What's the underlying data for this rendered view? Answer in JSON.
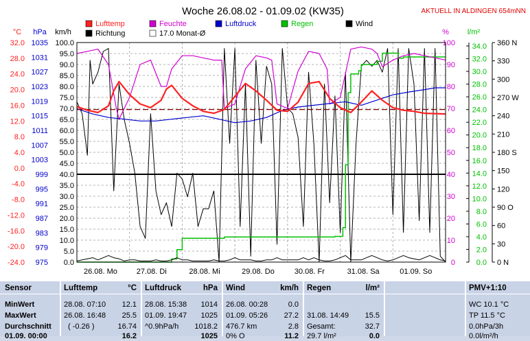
{
  "title": "Woche 26.08.02 - 01.09.02 (KW35)",
  "station_note": "AKTUELL IN ALDINGEN 654mNN",
  "colors": {
    "temp": "#ff2020",
    "hum": "#d000d0",
    "press": "#0000cc",
    "rain": "#00c000",
    "wind": "#000000",
    "avg": "#800000"
  },
  "axis_units": {
    "temp": "°C",
    "press": "hPa",
    "wind": "km/h",
    "hum": "%",
    "rain": "l/m²"
  },
  "legend": [
    {
      "label": "Lufttemp",
      "color": "#ff2020"
    },
    {
      "label": "Feuchte",
      "color": "#d000d0"
    },
    {
      "label": "Luftdruck",
      "color": "#0000cc"
    },
    {
      "label": "Regen",
      "color": "#00c000"
    },
    {
      "label": "Wind",
      "color": "#000000"
    },
    {
      "label": "Richtung",
      "color": "#000000"
    },
    {
      "label": "17.0 Monat-Ø",
      "color": "#ffffff"
    }
  ],
  "x_ticks": [
    "26.08.  Mo",
    "27.08.  Di",
    "28.08.  Mi",
    "29.08.  Do",
    "30.08.  Fr",
    "31.08.  Sa",
    "01.09.  So"
  ],
  "temp_ticks": [
    "32.0",
    "28.0",
    "24.0",
    "20.0",
    "16.0",
    "12.0",
    "8.0",
    "4.0",
    "0.0",
    "-4.0",
    "-8.0",
    "-12.0",
    "-16.0",
    "-20.0",
    "-24.0"
  ],
  "press_ticks": [
    "1035",
    "1031",
    "1027",
    "1023",
    "1019",
    "1015",
    "1011",
    "1007",
    "1003",
    "999",
    "995",
    "991",
    "987",
    "983",
    "979",
    "975"
  ],
  "wind_ticks": [
    "100.0",
    "95.0",
    "90.0",
    "85.0",
    "80.0",
    "75.0",
    "70.0",
    "65.0",
    "60.0",
    "55.0",
    "50.0",
    "45.0",
    "40.0",
    "35.0",
    "30.0",
    "25.0",
    "20.0",
    "15.0",
    "10.0",
    "5.0",
    "0.0"
  ],
  "hum_ticks": [
    "100",
    "90",
    "80",
    "70",
    "60",
    "50",
    "40",
    "30",
    "20",
    "10",
    "0"
  ],
  "rain_ticks": [
    "34.0",
    "32.0",
    "30.0",
    "28.0",
    "26.0",
    "24.0",
    "22.0",
    "20.0",
    "18.0",
    "16.0",
    "14.0",
    "12.0",
    "10.0",
    "8.0",
    "6.0",
    "4.0",
    "2.0",
    "0.0"
  ],
  "dir_ticks": [
    "360 N",
    "330",
    "300",
    "270 W",
    "240",
    "210",
    "180 S",
    "150",
    "120",
    "90 O",
    "60",
    "30",
    "0   N"
  ],
  "chart_data": {
    "type": "line",
    "title": "Woche 26.08.02 - 01.09.02 (KW35)",
    "x_unit": "days since 26.08.02 00:00",
    "xlim": [
      0,
      7
    ],
    "categories": [
      "26.08. Mo",
      "27.08. Di",
      "28.08. Mi",
      "29.08. Do",
      "30.08. Fr",
      "31.08. Sa",
      "01.09. So"
    ],
    "series": [
      {
        "name": "Lufttemp",
        "unit": "°C",
        "ylim": [
          -24,
          35
        ],
        "x": [
          0.0,
          0.2,
          0.4,
          0.6,
          0.7,
          0.8,
          1.0,
          1.2,
          1.4,
          1.6,
          1.7,
          1.8,
          2.0,
          2.2,
          2.4,
          2.6,
          2.8,
          3.0,
          3.2,
          3.4,
          3.6,
          3.8,
          4.0,
          4.2,
          4.4,
          4.6,
          4.8,
          5.0,
          5.2,
          5.4,
          5.6,
          5.8,
          6.0,
          6.2,
          6.4,
          6.6,
          6.8,
          7.0
        ],
        "values": [
          17.8,
          16.8,
          16.2,
          18.0,
          22.0,
          24.5,
          21.0,
          18.5,
          17.5,
          19.5,
          22.5,
          23.5,
          20.0,
          18.0,
          16.5,
          16.0,
          17.0,
          20.5,
          24.0,
          22.0,
          19.5,
          16.8,
          16.5,
          19.0,
          24.0,
          24.5,
          20.0,
          17.5,
          16.2,
          19.0,
          22.0,
          19.5,
          17.5,
          16.8,
          16.5,
          16.0,
          15.9,
          15.8
        ]
      },
      {
        "name": "Feuchte",
        "unit": "%",
        "ylim": [
          0,
          100
        ],
        "x": [
          0.0,
          0.2,
          0.4,
          0.6,
          0.75,
          0.8,
          1.0,
          1.2,
          1.4,
          1.6,
          1.7,
          1.8,
          2.0,
          2.2,
          2.4,
          2.6,
          2.75,
          2.8,
          3.0,
          3.2,
          3.4,
          3.6,
          3.7,
          3.8,
          4.0,
          4.2,
          4.4,
          4.6,
          4.75,
          4.8,
          5.0,
          5.2,
          5.4,
          5.6,
          5.7,
          5.8,
          6.0,
          6.2,
          6.4,
          6.6,
          6.8,
          7.0
        ],
        "values": [
          95,
          96,
          97,
          90,
          70,
          65,
          75,
          90,
          92,
          80,
          80,
          88,
          94,
          94,
          93,
          92,
          92,
          70,
          72,
          88,
          94,
          93,
          92,
          72,
          70,
          87,
          96,
          95,
          88,
          72,
          75,
          97,
          98,
          97,
          95,
          89,
          92,
          94,
          95,
          94,
          93,
          92
        ]
      },
      {
        "name": "Luftdruck",
        "unit": "hPa",
        "ylim": [
          975,
          1038
        ],
        "x": [
          0.0,
          0.3,
          0.6,
          0.9,
          1.2,
          1.5,
          1.8,
          2.1,
          2.4,
          2.7,
          3.0,
          3.3,
          3.6,
          3.9,
          4.2,
          4.5,
          4.8,
          5.1,
          5.4,
          5.7,
          6.0,
          6.3,
          6.6,
          6.8,
          7.0
        ],
        "values": [
          1019,
          1017.5,
          1016.5,
          1016,
          1015.5,
          1015.5,
          1016,
          1016.5,
          1017,
          1016,
          1015,
          1015.5,
          1016.5,
          1018.5,
          1019.5,
          1020,
          1020.5,
          1021,
          1020,
          1021.5,
          1023,
          1023.8,
          1024.5,
          1025,
          1025
        ]
      },
      {
        "name": "Regen",
        "unit": "l/m²",
        "ylim": [
          0,
          35
        ],
        "x": [
          0.0,
          1.7,
          1.8,
          1.9,
          2.0,
          2.7,
          2.8,
          4.8,
          4.9,
          5.05,
          5.1,
          5.15,
          5.2,
          5.3,
          5.35,
          5.4,
          5.6,
          5.7,
          5.8,
          6.0,
          6.1,
          6.2,
          6.3,
          7.0
        ],
        "values": [
          0,
          0,
          0.5,
          2,
          3.8,
          3.8,
          4.0,
          4.0,
          4.1,
          5.5,
          15.5,
          27,
          30,
          30,
          30.5,
          31.5,
          31.5,
          32,
          33.3,
          33.3,
          32.5,
          32.7,
          32.7,
          32.7
        ]
      },
      {
        "name": "Wind",
        "unit": "km/h",
        "ylim": [
          0,
          100
        ],
        "x": [
          0.0,
          0.1,
          0.2,
          0.3,
          0.4,
          0.5,
          0.6,
          0.7,
          0.8,
          0.9,
          1.0,
          1.1,
          1.2,
          1.3,
          1.4,
          1.5,
          1.6,
          1.7,
          1.8,
          1.9,
          2.0,
          2.1,
          2.2,
          2.3,
          2.4,
          2.5,
          2.6,
          2.7,
          2.8,
          2.9,
          3.0,
          3.1,
          3.2,
          3.3,
          3.4,
          3.5,
          3.6,
          3.7,
          3.8,
          3.9,
          4.0,
          4.1,
          4.2,
          4.3,
          4.4,
          4.5,
          4.6,
          4.7,
          4.8,
          4.9,
          5.0,
          5.1,
          5.2,
          5.3,
          5.4,
          5.5,
          5.6,
          5.7,
          5.8,
          5.9,
          6.0,
          6.1,
          6.2,
          6.3,
          6.4,
          6.5,
          6.6,
          6.7,
          6.8,
          6.9,
          7.0
        ],
        "values": [
          0.5,
          1,
          1.5,
          2,
          1,
          2,
          3,
          2,
          1.5,
          0.5,
          1,
          1,
          0.5,
          0.5,
          0.5,
          1,
          0.5,
          0.5,
          1,
          2,
          1,
          1,
          0.5,
          0.5,
          0.5,
          0.5,
          1,
          0.5,
          0.5,
          1,
          2,
          1,
          1,
          1,
          0.5,
          0.5,
          1,
          1,
          2,
          1,
          1,
          1,
          1,
          2,
          1,
          2,
          1,
          0.5,
          0.5,
          1,
          2,
          3,
          1,
          1,
          1,
          2,
          3,
          2,
          1,
          0.5,
          1,
          2,
          3,
          2,
          1.5,
          1,
          2,
          3,
          2,
          1,
          0.5
        ]
      },
      {
        "name": "Richtung",
        "unit": "°",
        "ylim": [
          0,
          370
        ],
        "x": [
          0.0,
          0.1,
          0.2,
          0.25,
          0.3,
          0.4,
          0.5,
          0.6,
          0.7,
          0.8,
          0.9,
          1.0,
          1.1,
          1.2,
          1.3,
          1.4,
          1.5,
          1.6,
          1.7,
          1.8,
          1.9,
          2.0,
          2.1,
          2.2,
          2.3,
          2.4,
          2.5,
          2.6,
          2.7,
          2.8,
          2.9,
          3.0,
          3.1,
          3.2,
          3.3,
          3.4,
          3.5,
          3.6,
          3.7,
          3.8,
          3.9,
          4.0,
          4.1,
          4.2,
          4.3,
          4.4,
          4.5,
          4.6,
          4.7,
          4.8,
          4.9,
          5.0,
          5.1,
          5.2,
          5.3,
          5.4,
          5.5,
          5.6,
          5.7,
          5.8,
          5.9,
          6.0,
          6.1,
          6.2,
          6.3,
          6.4,
          6.5,
          6.6,
          6.7,
          6.8,
          6.9,
          7.0
        ],
        "values": [
          270,
          250,
          180,
          340,
          300,
          320,
          355,
          360,
          120,
          300,
          240,
          200,
          150,
          60,
          40,
          250,
          120,
          80,
          100,
          60,
          150,
          140,
          110,
          150,
          60,
          90,
          90,
          120,
          0,
          360,
          200,
          360,
          60,
          300,
          10,
          340,
          200,
          330,
          300,
          30,
          360,
          260,
          250,
          210,
          60,
          320,
          200,
          0,
          300,
          100,
          280,
          50,
          320,
          0,
          200,
          330,
          340,
          330,
          340,
          320,
          360,
          80,
          360,
          50,
          360,
          300,
          70,
          360,
          50,
          360,
          10,
          0
        ]
      },
      {
        "name": "17.0 Monat-Ø",
        "unit": "°C",
        "x": [
          0,
          7
        ],
        "values": [
          17.0,
          17.0
        ]
      }
    ]
  },
  "table": {
    "labels": {
      "header": "Sensor",
      "min": "MinWert",
      "max": "MaxWert",
      "avg": "Durchschnitt",
      "extra": "01.09.  00:00"
    },
    "temp": {
      "header": "Lufttemp",
      "unit": "°C",
      "min_time": "28.08.  07:10",
      "min_val": "12.1",
      "max_time": "26.08.  16:48",
      "max_val": "25.5",
      "avg_note": "( -0.26 )",
      "avg_val": "16.74",
      "extra_val": "16.2"
    },
    "press": {
      "header": "Luftdruck",
      "unit": "hPa",
      "min_time": "28.08.  15:38",
      "min_val": "1014",
      "max_time": "01.09.  19:47",
      "max_val": "1025",
      "avg_note": "^0.9hPa/h",
      "avg_val": "1018.2",
      "extra_val": "1025"
    },
    "wind": {
      "header": "Wind",
      "unit": "km/h",
      "min_time": "26.08.  00:28",
      "min_val": "0.0",
      "max_time": "01.09.  05:26",
      "max_val": "27.2",
      "avg_note": "476.7 km",
      "avg_val": "2.8",
      "extra_note": "0%  O",
      "extra_val": "11.2"
    },
    "rain": {
      "header": "Regen",
      "unit": "l/m²",
      "max_time": "31.08.  14:49",
      "max_val": "15.5",
      "avg_note": "Gesamt:",
      "avg_val": "32.7",
      "extra_note": "29.7 l/m²",
      "extra_val": "0.0"
    },
    "pmv": {
      "header": "PMV+1:10",
      "line1": "WC 10.1 °C",
      "line2": "TP 11.5 °C",
      "line3": "0.0hPa/3h",
      "line4": "0.0l/m²/h"
    }
  }
}
